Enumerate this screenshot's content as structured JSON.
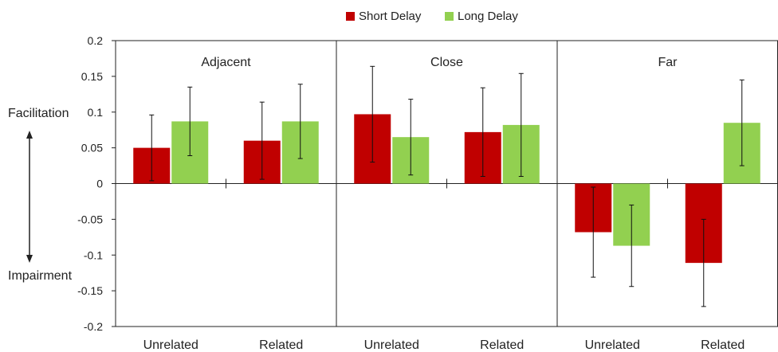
{
  "chart_data": {
    "type": "bar",
    "ylim": [
      -0.2,
      0.2
    ],
    "y_ticks": [
      "0.2",
      "0.15",
      "0.1",
      "0.05",
      "0",
      "-0.05",
      "-0.1",
      "-0.15",
      "-0.2"
    ],
    "y_tick_values": [
      0.2,
      0.15,
      0.1,
      0.05,
      0,
      -0.05,
      -0.1,
      -0.15,
      -0.2
    ],
    "side_labels": {
      "top": "Facilitation",
      "bottom": "Impairment"
    },
    "legend": {
      "position": "top-center",
      "items": [
        {
          "name": "Short Delay",
          "color": "#c00000"
        },
        {
          "name": "Long Delay",
          "color": "#92d050"
        }
      ]
    },
    "series_colors": [
      "#c00000",
      "#92d050"
    ],
    "panels": [
      {
        "title": "Adjacent",
        "categories": [
          "Unrelated",
          "Related"
        ],
        "series": [
          {
            "name": "Short Delay",
            "values": [
              0.05,
              0.06
            ],
            "errors": [
              0.046,
              0.054
            ]
          },
          {
            "name": "Long Delay",
            "values": [
              0.087,
              0.087
            ],
            "errors": [
              0.048,
              0.052
            ]
          }
        ]
      },
      {
        "title": "Close",
        "categories": [
          "Unrelated",
          "Related"
        ],
        "series": [
          {
            "name": "Short Delay",
            "values": [
              0.097,
              0.072
            ],
            "errors": [
              0.067,
              0.062
            ]
          },
          {
            "name": "Long Delay",
            "values": [
              0.065,
              0.082
            ],
            "errors": [
              0.053,
              0.072
            ]
          }
        ]
      },
      {
        "title": "Far",
        "categories": [
          "Unrelated",
          "Related"
        ],
        "series": [
          {
            "name": "Short Delay",
            "values": [
              -0.068,
              -0.111
            ],
            "errors": [
              0.063,
              0.061
            ]
          },
          {
            "name": "Long Delay",
            "values": [
              -0.087,
              0.085
            ],
            "errors": [
              0.057,
              0.06
            ]
          }
        ]
      }
    ]
  }
}
